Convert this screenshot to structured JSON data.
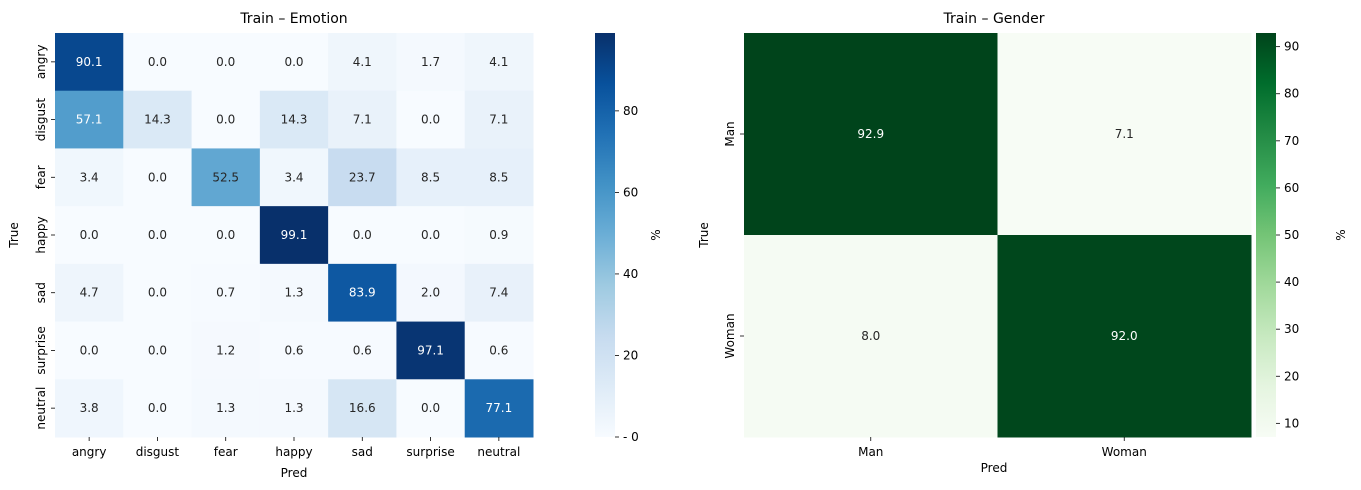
{
  "chart_data": [
    {
      "type": "heatmap",
      "title": "Train – Emotion",
      "xlabel": "Pred",
      "ylabel": "True",
      "x_categories": [
        "angry",
        "disgust",
        "fear",
        "happy",
        "sad",
        "surprise",
        "neutral"
      ],
      "y_categories": [
        "angry",
        "disgust",
        "fear",
        "happy",
        "sad",
        "surprise",
        "neutral"
      ],
      "values": [
        [
          90.1,
          0.0,
          0.0,
          0.0,
          4.1,
          1.7,
          4.1
        ],
        [
          57.1,
          14.3,
          0.0,
          14.3,
          7.1,
          0.0,
          7.1
        ],
        [
          3.4,
          0.0,
          52.5,
          3.4,
          23.7,
          8.5,
          8.5
        ],
        [
          0.0,
          0.0,
          0.0,
          99.1,
          0.0,
          0.0,
          0.9
        ],
        [
          4.7,
          0.0,
          0.7,
          1.3,
          83.9,
          2.0,
          7.4
        ],
        [
          0.0,
          0.0,
          1.2,
          0.6,
          0.6,
          97.1,
          0.6
        ],
        [
          3.8,
          0.0,
          1.3,
          1.3,
          16.6,
          0.0,
          77.1
        ]
      ],
      "colormap": "Blues",
      "vmin": 0,
      "vmax": 99.1,
      "colorbar": {
        "label": "%",
        "ticks": [
          0,
          20,
          40,
          60,
          80
        ]
      }
    },
    {
      "type": "heatmap",
      "title": "Train – Gender",
      "xlabel": "Pred",
      "ylabel": "True",
      "x_categories": [
        "Man",
        "Woman"
      ],
      "y_categories": [
        "Man",
        "Woman"
      ],
      "values": [
        [
          92.9,
          7.1
        ],
        [
          8.0,
          92.0
        ]
      ],
      "colormap": "Greens",
      "vmin": 7.1,
      "vmax": 92.9,
      "colorbar": {
        "label": "%",
        "ticks": [
          10,
          20,
          30,
          40,
          50,
          60,
          70,
          80,
          90
        ]
      }
    }
  ]
}
